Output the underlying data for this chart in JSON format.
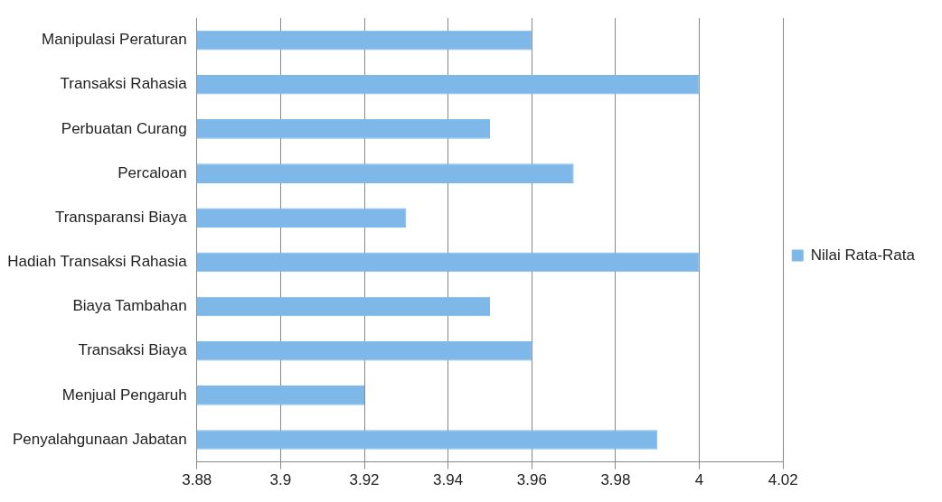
{
  "chart_data": {
    "type": "bar",
    "orientation": "horizontal",
    "categories": [
      "Manipulasi Peraturan",
      "Transaksi Rahasia",
      "Perbuatan Curang",
      "Percaloan",
      "Transparansi Biaya",
      "Hadiah Transaksi Rahasia",
      "Biaya Tambahan",
      "Transaksi Biaya",
      "Menjual Pengaruh",
      "Penyalahgunaan Jabatan"
    ],
    "series": [
      {
        "name": "Nilai Rata-Rata",
        "color": "#7db8e8",
        "values": [
          3.96,
          4.0,
          3.95,
          3.97,
          3.93,
          4.0,
          3.95,
          3.96,
          3.92,
          3.99
        ]
      }
    ],
    "xlim": [
      3.88,
      4.02
    ],
    "xticks": [
      3.88,
      3.9,
      3.92,
      3.94,
      3.96,
      3.98,
      4,
      4.02
    ],
    "grid": "x",
    "legend": "right"
  }
}
